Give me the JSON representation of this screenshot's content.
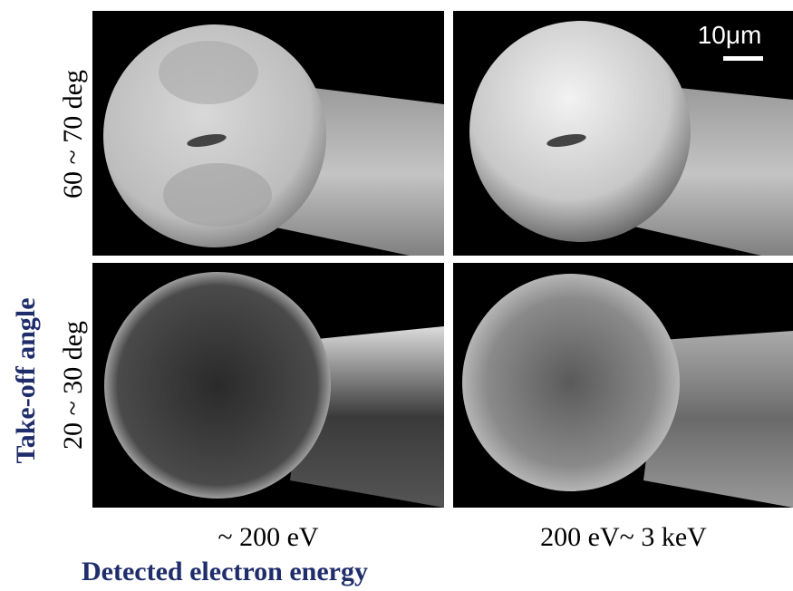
{
  "scale_bar": "10μm",
  "row_labels": [
    "60 ~ 70 deg",
    "20 ~ 30 deg"
  ],
  "column_labels": [
    "~ 200 eV",
    "200 eV~ 3 keV"
  ],
  "y_axis_title": "Take-off angle",
  "x_axis_title": "Detected electron energy"
}
